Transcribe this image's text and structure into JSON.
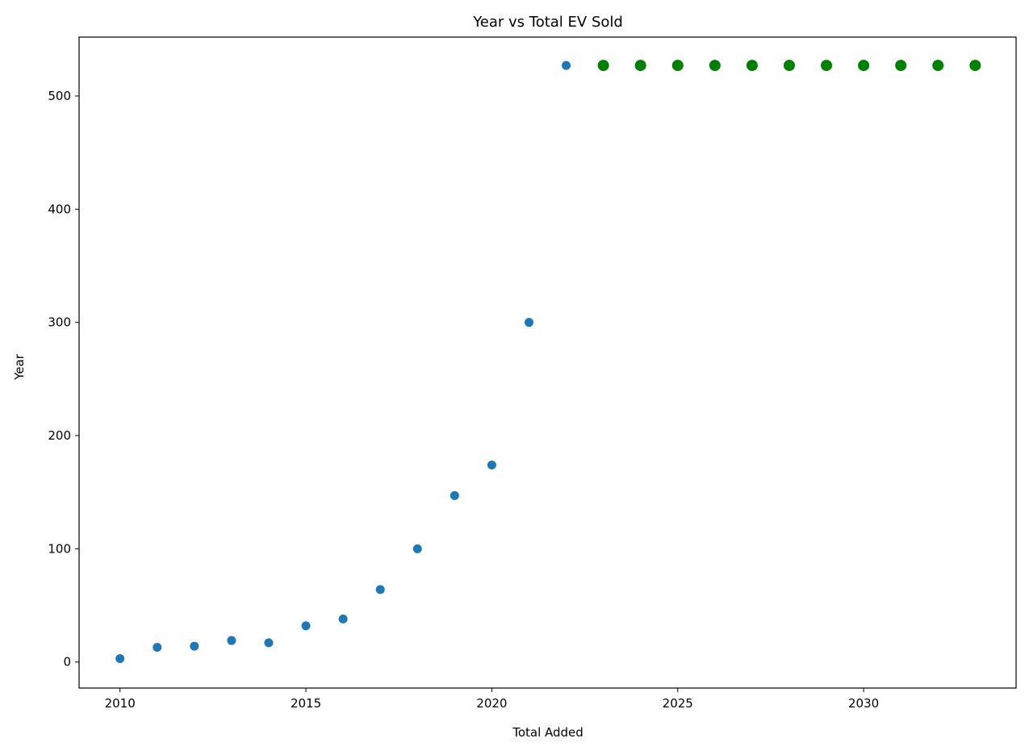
{
  "chart_data": {
    "type": "scatter",
    "title": "Year vs Total EV Sold",
    "xlabel": "Total Added",
    "ylabel": "Year",
    "xlim": [
      2008.9,
      2034.1
    ],
    "ylim": [
      -23,
      552
    ],
    "xticks": [
      2010,
      2015,
      2020,
      2025,
      2030
    ],
    "yticks": [
      0,
      100,
      200,
      300,
      400,
      500
    ],
    "grid": false,
    "legend": "none",
    "series": [
      {
        "color": "#1f77b4",
        "marker_size": "small",
        "points": [
          {
            "x": 2010,
            "y": 3
          },
          {
            "x": 2011,
            "y": 13
          },
          {
            "x": 2012,
            "y": 14
          },
          {
            "x": 2013,
            "y": 19
          },
          {
            "x": 2014,
            "y": 17
          },
          {
            "x": 2015,
            "y": 32
          },
          {
            "x": 2016,
            "y": 38
          },
          {
            "x": 2017,
            "y": 64
          },
          {
            "x": 2018,
            "y": 100
          },
          {
            "x": 2019,
            "y": 147
          },
          {
            "x": 2020,
            "y": 174
          },
          {
            "x": 2021,
            "y": 300
          },
          {
            "x": 2022,
            "y": 527
          }
        ]
      },
      {
        "color": "#008000",
        "marker_size": "large",
        "points": [
          {
            "x": 2023,
            "y": 527
          },
          {
            "x": 2024,
            "y": 527
          },
          {
            "x": 2025,
            "y": 527
          },
          {
            "x": 2026,
            "y": 527
          },
          {
            "x": 2027,
            "y": 527
          },
          {
            "x": 2028,
            "y": 527
          },
          {
            "x": 2029,
            "y": 527
          },
          {
            "x": 2030,
            "y": 527
          },
          {
            "x": 2031,
            "y": 527
          },
          {
            "x": 2032,
            "y": 527
          },
          {
            "x": 2033,
            "y": 527
          }
        ]
      }
    ]
  }
}
